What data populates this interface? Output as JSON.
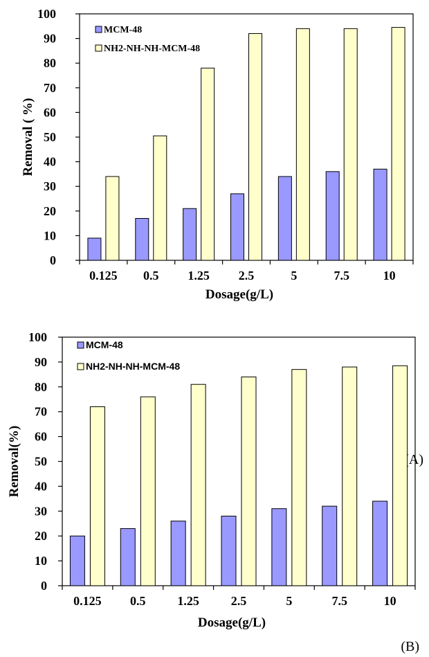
{
  "colors": {
    "mcm": "#9999ff",
    "nh2": "#ffffcc",
    "outline": "#000000"
  },
  "chart_data": [
    {
      "type": "bar",
      "panel_label": "(A)",
      "categories": [
        "0.125",
        "0.5",
        "1.25",
        "2.5",
        "5",
        "7.5",
        "10"
      ],
      "series": [
        {
          "name": "MCM-48",
          "values": [
            9,
            17,
            21,
            27,
            34,
            36,
            37
          ]
        },
        {
          "name": "NH2-NH-NH-MCM-48",
          "values": [
            34,
            50.5,
            78,
            92,
            94,
            94,
            94.5
          ]
        }
      ],
      "xlabel": "Dosage(g/L)",
      "ylabel": "Removal ( %)",
      "ylim": [
        0,
        100
      ],
      "yticks": [
        0,
        10,
        20,
        30,
        40,
        50,
        60,
        70,
        80,
        90,
        100
      ],
      "grid": false,
      "legend": "top-left"
    },
    {
      "type": "bar",
      "panel_label": "(B)",
      "categories": [
        "0.125",
        "0.5",
        "1.25",
        "2.5",
        "5",
        "7.5",
        "10"
      ],
      "series": [
        {
          "name": "MCM-48",
          "values": [
            20,
            23,
            26,
            28,
            31,
            32,
            34
          ]
        },
        {
          "name": "NH2-NH-NH-MCM-48",
          "values": [
            72,
            76,
            81,
            84,
            87,
            88,
            88.5
          ]
        }
      ],
      "xlabel": "Dosage(g/L)",
      "ylabel": "Removal(%)",
      "ylim": [
        0,
        100
      ],
      "yticks": [
        0,
        10,
        20,
        30,
        40,
        50,
        60,
        70,
        80,
        90,
        100
      ],
      "grid": false,
      "legend": "top-left"
    }
  ]
}
